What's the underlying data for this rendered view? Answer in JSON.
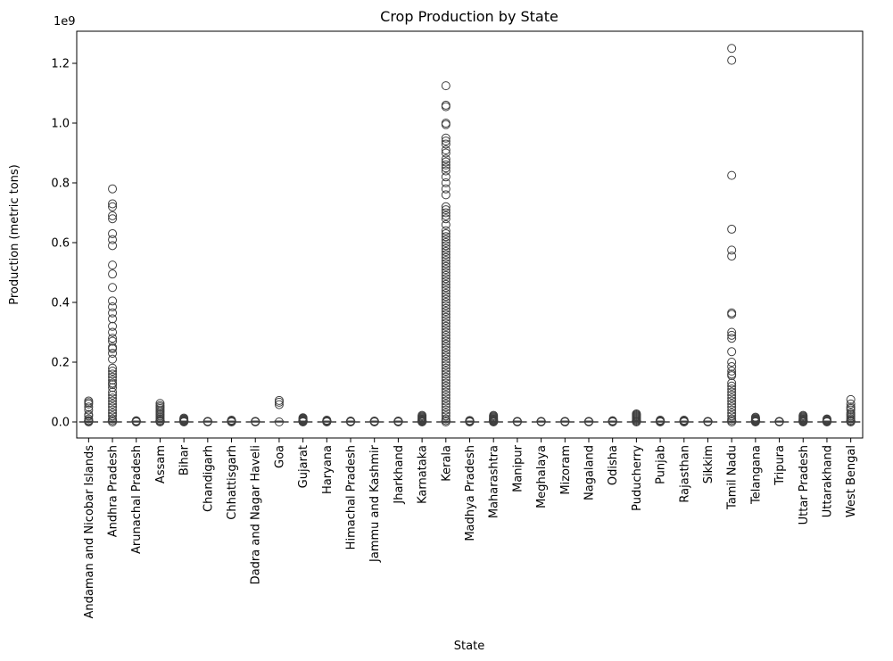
{
  "chart_data": {
    "type": "boxplot",
    "title": "Crop Production by State",
    "xlabel": "State",
    "ylabel": "Production (metric tons)",
    "y_scale_label": "1e9",
    "ylim": [
      -0.06,
      1.31
    ],
    "y_unit_multiplier": 1000000000,
    "yticks": [
      0.0,
      0.2,
      0.4,
      0.6,
      0.8,
      1.0,
      1.2
    ],
    "ytick_labels": [
      "0.0",
      "0.2",
      "0.4",
      "0.6",
      "0.8",
      "1.0",
      "1.2"
    ],
    "grid": false,
    "box_color": "#3f3f3f",
    "marker_style": "hollow-circle",
    "categories": [
      "Andaman and Nicobar Islands",
      "Andhra Pradesh",
      "Arunachal Pradesh",
      "Assam",
      "Bihar",
      "Chandigarh",
      "Chhattisgarh",
      "Dadra and Nagar Haveli",
      "Goa",
      "Gujarat",
      "Haryana",
      "Himachal Pradesh",
      "Jammu and Kashmir",
      "Jharkhand",
      "Karnataka",
      "Kerala",
      "Madhya Pradesh",
      "Maharashtra",
      "Manipur",
      "Meghalaya",
      "Mizoram",
      "Nagaland",
      "Odisha",
      "Puducherry",
      "Punjab",
      "Rajasthan",
      "Sikkim",
      "Tamil Nadu",
      "Telangana",
      "Tripura",
      "Uttar Pradesh",
      "Uttarakhand",
      "West Bengal"
    ],
    "series": [
      {
        "state": "Andaman and Nicobar Islands",
        "outliers": [
          0.07,
          0.065,
          0.06,
          0.05,
          0.04,
          0.025,
          0.02,
          0.01,
          0.005,
          0.002
        ]
      },
      {
        "state": "Andhra Pradesh",
        "outliers": [
          0.78,
          0.73,
          0.72,
          0.69,
          0.68,
          0.63,
          0.61,
          0.59,
          0.525,
          0.495,
          0.45,
          0.405,
          0.385,
          0.365,
          0.345,
          0.32,
          0.3,
          0.28,
          0.27,
          0.25,
          0.245,
          0.23,
          0.21,
          0.18,
          0.17,
          0.16,
          0.15,
          0.14,
          0.13,
          0.125,
          0.115,
          0.1,
          0.09,
          0.08,
          0.07,
          0.06,
          0.05,
          0.04,
          0.03,
          0.02,
          0.01,
          0.005
        ]
      },
      {
        "state": "Arunachal Pradesh",
        "outliers": [
          0.004,
          0.003,
          0.002,
          0.001
        ]
      },
      {
        "state": "Assam",
        "outliers": [
          0.062,
          0.055,
          0.05,
          0.045,
          0.04,
          0.035,
          0.03,
          0.025,
          0.02,
          0.015,
          0.01,
          0.006,
          0.003
        ]
      },
      {
        "state": "Bihar",
        "outliers": [
          0.013,
          0.01,
          0.008,
          0.006,
          0.004,
          0.002
        ]
      },
      {
        "state": "Chandigarh",
        "outliers": [
          0.002,
          0.001
        ]
      },
      {
        "state": "Chhattisgarh",
        "outliers": [
          0.006,
          0.004,
          0.003,
          0.002,
          0.001
        ]
      },
      {
        "state": "Dadra and Nagar Haveli",
        "outliers": [
          0.002,
          0.001
        ]
      },
      {
        "state": "Goa",
        "outliers": [
          0.072,
          0.066,
          0.058
        ]
      },
      {
        "state": "Gujarat",
        "outliers": [
          0.014,
          0.012,
          0.01,
          0.008,
          0.006,
          0.004,
          0.002
        ]
      },
      {
        "state": "Haryana",
        "outliers": [
          0.006,
          0.004,
          0.003,
          0.002,
          0.001
        ]
      },
      {
        "state": "Himachal Pradesh",
        "outliers": [
          0.003,
          0.002,
          0.001
        ]
      },
      {
        "state": "Jammu and Kashmir",
        "outliers": [
          0.003,
          0.002,
          0.001
        ]
      },
      {
        "state": "Jharkhand",
        "outliers": [
          0.003,
          0.002,
          0.001
        ]
      },
      {
        "state": "Karnataka",
        "outliers": [
          0.022,
          0.019,
          0.016,
          0.013,
          0.01,
          0.008,
          0.006,
          0.004,
          0.002
        ]
      },
      {
        "state": "Kerala",
        "outliers": [
          1.125,
          1.06,
          1.055,
          1.0,
          0.995,
          0.95,
          0.94,
          0.93,
          0.91,
          0.9,
          0.88,
          0.87,
          0.86,
          0.85,
          0.84,
          0.82,
          0.8,
          0.78,
          0.76,
          0.72,
          0.71,
          0.7,
          0.69,
          0.68,
          0.66,
          0.64,
          0.63,
          0.62,
          0.61,
          0.6,
          0.59,
          0.58,
          0.57,
          0.56,
          0.55,
          0.54,
          0.53,
          0.52,
          0.51,
          0.5,
          0.49,
          0.48,
          0.47,
          0.46,
          0.45,
          0.44,
          0.43,
          0.42,
          0.41,
          0.4,
          0.39,
          0.38,
          0.37,
          0.36,
          0.35,
          0.34,
          0.33,
          0.32,
          0.31,
          0.3,
          0.29,
          0.28,
          0.27,
          0.26,
          0.25,
          0.24,
          0.23,
          0.22,
          0.21,
          0.2,
          0.19,
          0.18,
          0.17,
          0.16,
          0.15,
          0.14,
          0.13,
          0.12,
          0.11,
          0.1,
          0.09,
          0.08,
          0.07,
          0.06,
          0.05,
          0.04,
          0.03,
          0.02,
          0.01,
          0.005
        ]
      },
      {
        "state": "Madhya Pradesh",
        "outliers": [
          0.005,
          0.003,
          0.002,
          0.001
        ]
      },
      {
        "state": "Maharashtra",
        "outliers": [
          0.022,
          0.019,
          0.016,
          0.013,
          0.01,
          0.008,
          0.006,
          0.004,
          0.002
        ]
      },
      {
        "state": "Manipur",
        "outliers": [
          0.002,
          0.001
        ]
      },
      {
        "state": "Meghalaya",
        "outliers": [
          0.002,
          0.001
        ]
      },
      {
        "state": "Mizoram",
        "outliers": [
          0.002,
          0.001
        ]
      },
      {
        "state": "Nagaland",
        "outliers": [
          0.002,
          0.001
        ]
      },
      {
        "state": "Odisha",
        "outliers": [
          0.004,
          0.003,
          0.002,
          0.001
        ]
      },
      {
        "state": "Puducherry",
        "outliers": [
          0.027,
          0.024,
          0.021,
          0.018,
          0.015,
          0.012,
          0.009,
          0.006,
          0.003
        ]
      },
      {
        "state": "Punjab",
        "outliers": [
          0.006,
          0.004,
          0.003,
          0.002,
          0.001
        ]
      },
      {
        "state": "Rajasthan",
        "outliers": [
          0.006,
          0.004,
          0.003,
          0.002,
          0.001
        ]
      },
      {
        "state": "Sikkim",
        "outliers": [
          0.002,
          0.001
        ]
      },
      {
        "state": "Tamil Nadu",
        "outliers": [
          1.25,
          1.21,
          0.825,
          0.645,
          0.575,
          0.555,
          0.365,
          0.36,
          0.3,
          0.29,
          0.28,
          0.235,
          0.2,
          0.185,
          0.17,
          0.16,
          0.155,
          0.13,
          0.12,
          0.11,
          0.1,
          0.09,
          0.08,
          0.07,
          0.06,
          0.05,
          0.04,
          0.03,
          0.02,
          0.01,
          0.005
        ]
      },
      {
        "state": "Telangana",
        "outliers": [
          0.016,
          0.013,
          0.01,
          0.008,
          0.006,
          0.004,
          0.002
        ]
      },
      {
        "state": "Tripura",
        "outliers": [
          0.002,
          0.001
        ]
      },
      {
        "state": "Uttar Pradesh",
        "outliers": [
          0.022,
          0.019,
          0.016,
          0.013,
          0.01,
          0.008,
          0.006,
          0.004,
          0.002
        ]
      },
      {
        "state": "Uttarakhand",
        "outliers": [
          0.01,
          0.008,
          0.006,
          0.004,
          0.002
        ]
      },
      {
        "state": "West Bengal",
        "outliers": [
          0.075,
          0.06,
          0.05,
          0.045,
          0.04,
          0.03,
          0.025,
          0.02,
          0.015,
          0.01,
          0.006,
          0.003
        ]
      }
    ]
  }
}
